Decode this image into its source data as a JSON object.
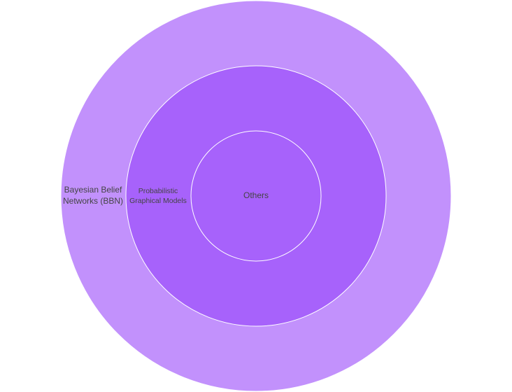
{
  "chart_data": {
    "type": "sunburst",
    "title": "",
    "nodes": [
      {
        "label": "Others",
        "parent": "",
        "level": 0,
        "color": "#a762fb"
      },
      {
        "label": "Probabilistic Graphical Models",
        "label_lines": [
          "Probabilistic",
          "Graphical Models"
        ],
        "parent": "Others",
        "level": 1,
        "color": "#a762fb"
      },
      {
        "label": "Bayesian Belief Networks (BBN)",
        "label_lines": [
          "Bayesian Belief",
          "Networks (BBN)"
        ],
        "parent": "Probabilistic Graphical Models",
        "level": 2,
        "color": "#c291fc"
      }
    ],
    "colors": {
      "inner": "#a762fb",
      "middle": "#a762fb",
      "outer": "#c291fc",
      "separator": "#ffffff",
      "label": "#444444"
    }
  }
}
